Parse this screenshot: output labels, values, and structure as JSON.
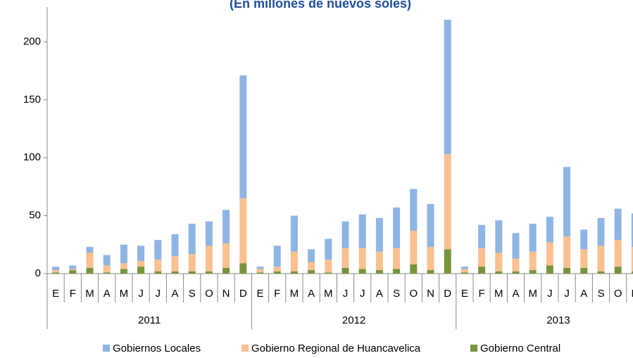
{
  "chart_data": {
    "type": "stacked_bar",
    "subtitle": "(En millones de nuevos soles)",
    "categories": [
      "E",
      "F",
      "M",
      "A",
      "M",
      "J",
      "J",
      "A",
      "S",
      "O",
      "N",
      "D",
      "E",
      "F",
      "M",
      "A",
      "M",
      "J",
      "J",
      "A",
      "S",
      "O",
      "N",
      "D",
      "E",
      "F",
      "M",
      "A",
      "M",
      "J",
      "J",
      "A",
      "S",
      "O",
      "N"
    ],
    "groups": [
      "2011",
      "2012",
      "2013"
    ],
    "series": [
      {
        "name": "Gobierno Central",
        "color": "#77933c",
        "values": [
          1,
          3,
          5,
          1,
          4,
          6,
          2,
          2,
          2,
          2,
          5,
          9,
          1,
          2,
          2,
          3,
          1,
          5,
          4,
          3,
          4,
          8,
          3,
          21,
          1,
          6,
          2,
          2,
          3,
          7,
          5,
          5,
          2,
          6,
          2
        ]
      },
      {
        "name": "Gobierno Regional de Huancavelica",
        "color": "#fac090",
        "values": [
          2,
          1,
          13,
          6,
          5,
          5,
          10,
          13,
          15,
          22,
          21,
          56,
          3,
          4,
          17,
          7,
          11,
          17,
          18,
          16,
          18,
          29,
          20,
          82,
          3,
          16,
          16,
          11,
          16,
          20,
          27,
          16,
          22,
          23,
          21
        ]
      },
      {
        "name": "Gobiernos Locales",
        "color": "#8eb4e3",
        "values": [
          3,
          3,
          5,
          9,
          16,
          13,
          17,
          19,
          26,
          21,
          29,
          106,
          2,
          18,
          31,
          11,
          18,
          23,
          29,
          29,
          35,
          36,
          37,
          116,
          2,
          20,
          28,
          22,
          24,
          22,
          60,
          17,
          24,
          27,
          29
        ]
      }
    ],
    "ylim": [
      0,
      230
    ],
    "yticks": [
      0,
      50,
      100,
      150,
      200
    ]
  }
}
